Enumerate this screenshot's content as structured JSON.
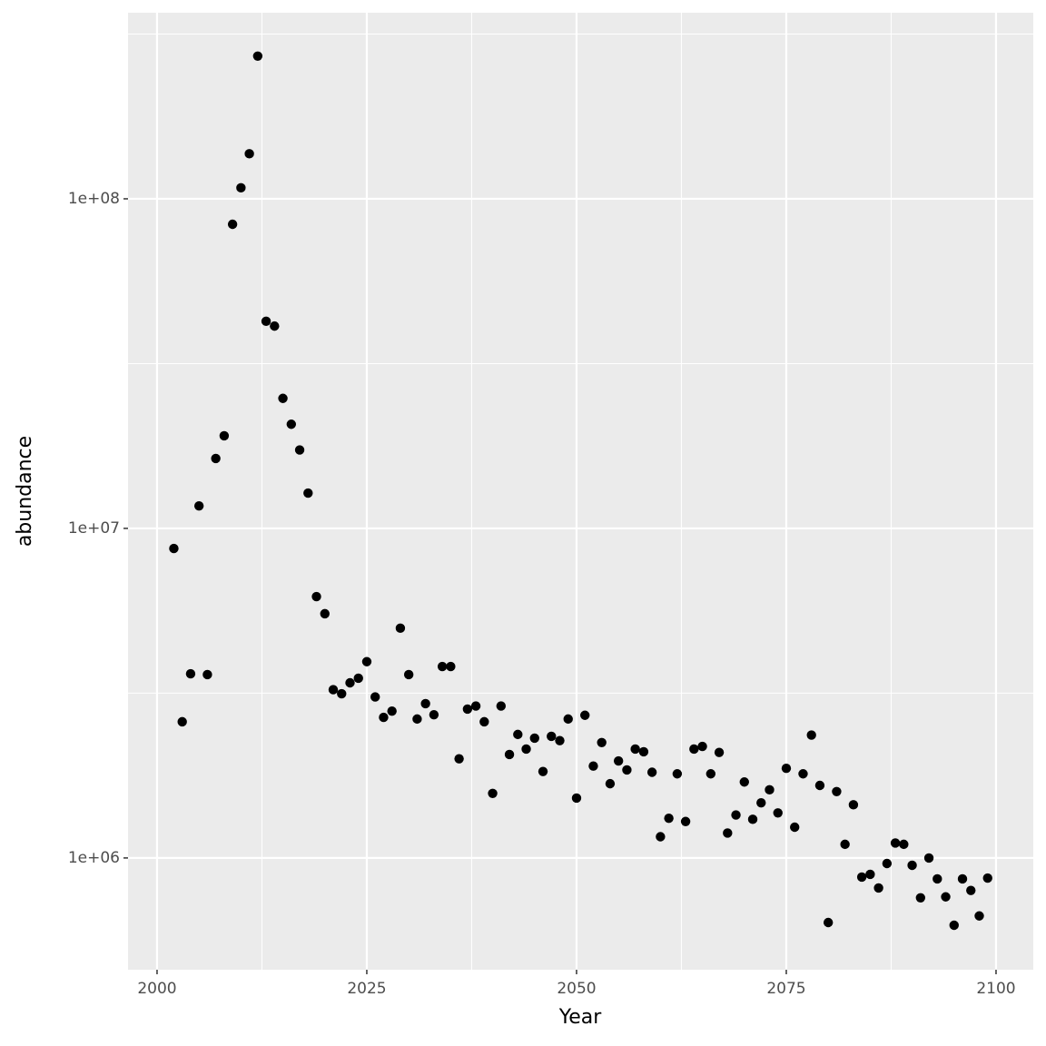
{
  "chart_data": {
    "type": "scatter",
    "x_label": "Year",
    "y_label": "abundance",
    "x": [
      2002,
      2003,
      2004,
      2005,
      2006,
      2007,
      2008,
      2009,
      2010,
      2011,
      2012,
      2013,
      2014,
      2015,
      2016,
      2017,
      2018,
      2019,
      2020,
      2021,
      2022,
      2023,
      2024,
      2025,
      2026,
      2027,
      2028,
      2029,
      2030,
      2031,
      2032,
      2033,
      2034,
      2035,
      2036,
      2037,
      2038,
      2039,
      2040,
      2041,
      2042,
      2043,
      2044,
      2045,
      2046,
      2047,
      2048,
      2049,
      2050,
      2051,
      2052,
      2053,
      2054,
      2055,
      2056,
      2057,
      2058,
      2059,
      2060,
      2061,
      2062,
      2063,
      2064,
      2065,
      2066,
      2067,
      2068,
      2069,
      2070,
      2071,
      2072,
      2073,
      2074,
      2075,
      2076,
      2077,
      2078,
      2079,
      2080,
      2081,
      2082,
      2083,
      2084,
      2085,
      2086,
      2087,
      2088,
      2089,
      2090,
      2091,
      2092,
      2093,
      2094,
      2095,
      2096,
      2097,
      2098,
      2099
    ],
    "values": [
      8690000,
      2590000,
      3620000,
      11700000,
      3600000,
      16300000,
      19100000,
      83700000,
      108000000,
      137000000,
      271000000,
      42500000,
      41100000,
      24800000,
      20700000,
      17300000,
      12800000,
      6210000,
      5510000,
      3240000,
      3150000,
      3400000,
      3510000,
      3940000,
      3080000,
      2670000,
      2790000,
      4980000,
      3600000,
      2640000,
      2940000,
      2720000,
      3810000,
      3810000,
      2000000,
      2830000,
      2890000,
      2590000,
      1570000,
      2890000,
      2060000,
      2370000,
      2140000,
      2310000,
      1830000,
      2340000,
      2270000,
      2640000,
      1520000,
      2710000,
      1900000,
      2240000,
      1680000,
      1970000,
      1850000,
      2140000,
      2100000,
      1820000,
      1160000,
      1320000,
      1800000,
      1290000,
      2140000,
      2180000,
      1800000,
      2090000,
      1190000,
      1350000,
      1700000,
      1310000,
      1470000,
      1610000,
      1370000,
      1870000,
      1240000,
      1800000,
      2360000,
      1660000,
      637000,
      1590000,
      1100000,
      1450000,
      875000,
      892000,
      811000,
      962000,
      1110000,
      1100000,
      950000,
      757000,
      1000000,
      864000,
      762000,
      625000,
      864000,
      797000,
      667000,
      869000
    ],
    "color": "#000000",
    "xlim": [
      1996.54,
      2104.44
    ],
    "xticks": [
      2000,
      2025,
      2050,
      2075,
      2100
    ],
    "ylim": [
      458000,
      367000000
    ],
    "log_y": true,
    "yticks": [
      {
        "value": 1000000,
        "label": "1e+06"
      },
      {
        "value": 10000000,
        "label": "1e+07"
      },
      {
        "value": 100000000,
        "label": "1e+08"
      }
    ],
    "grid": true
  }
}
